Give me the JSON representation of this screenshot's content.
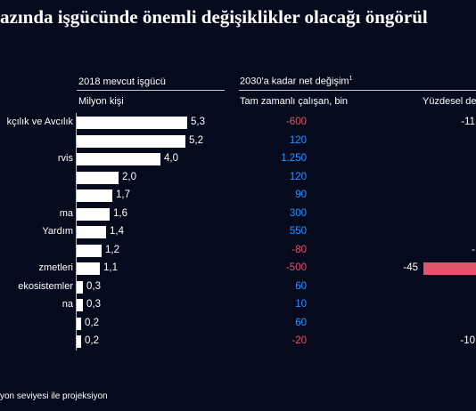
{
  "title": "azında işgücünde önemli değişiklikler olacağı öngörül",
  "headers": {
    "workforce": "2018 mevcut işgücü",
    "workforce_unit": "Milyon kişi",
    "net_change": "2030'a kadar net değişim",
    "net_change_sup": "1",
    "fte": "Tam zamanlı çalışan, bin",
    "pct": "Yüzdesel de"
  },
  "footnote": "yon seviyesi ile projeksiyon",
  "colors": {
    "background": "#050a1c",
    "positive": "#2e90ff",
    "negative": "#e0556d",
    "bar": "#ffffff"
  },
  "chart_data": {
    "type": "bar",
    "title": "azında işgücünde önemli değişiklikler olacağı öngörül",
    "xlim": [
      0,
      5.3
    ],
    "rows": [
      {
        "label": "kçılık ve Avcılık",
        "workforce": 5.3,
        "workforce_text": "5,3",
        "fte": -600,
        "fte_text": "-600",
        "pct_text": "-11"
      },
      {
        "label": "",
        "workforce": 5.2,
        "workforce_text": "5,2",
        "fte": 120,
        "fte_text": "120",
        "pct_text": ""
      },
      {
        "label": "rvis",
        "workforce": 4.0,
        "workforce_text": "4,0",
        "fte": 1250,
        "fte_text": "1.250",
        "pct_text": ""
      },
      {
        "label": "",
        "workforce": 2.0,
        "workforce_text": "2,0",
        "fte": 120,
        "fte_text": "120",
        "pct_text": ""
      },
      {
        "label": "",
        "workforce": 1.7,
        "workforce_text": "1,7",
        "fte": 90,
        "fte_text": "90",
        "pct_text": ""
      },
      {
        "label": "ma",
        "workforce": 1.6,
        "workforce_text": "1,6",
        "fte": 300,
        "fte_text": "300",
        "pct_text": ""
      },
      {
        "label": "Yardım",
        "workforce": 1.4,
        "workforce_text": "1,4",
        "fte": 550,
        "fte_text": "550",
        "pct_text": ""
      },
      {
        "label": "",
        "workforce": 1.2,
        "workforce_text": "1,2",
        "fte": -80,
        "fte_text": "-80",
        "pct_text": "-"
      },
      {
        "label": "zmetleri",
        "workforce": 1.1,
        "workforce_text": "1,1",
        "fte": -500,
        "fte_text": "-500",
        "pct": -45,
        "pct_text": "-45"
      },
      {
        "label": "ekosistemler",
        "workforce": 0.3,
        "workforce_text": "0,3",
        "fte": 60,
        "fte_text": "60",
        "pct_text": ""
      },
      {
        "label": "na",
        "workforce": 0.3,
        "workforce_text": "0,3",
        "fte": 10,
        "fte_text": "10",
        "pct_text": ""
      },
      {
        "label": "",
        "workforce": 0.2,
        "workforce_text": "0,2",
        "fte": 60,
        "fte_text": "60",
        "pct_text": ""
      },
      {
        "label": "",
        "workforce": 0.2,
        "workforce_text": "0,2",
        "fte": -20,
        "fte_text": "-20",
        "pct_text": "-10"
      }
    ]
  }
}
